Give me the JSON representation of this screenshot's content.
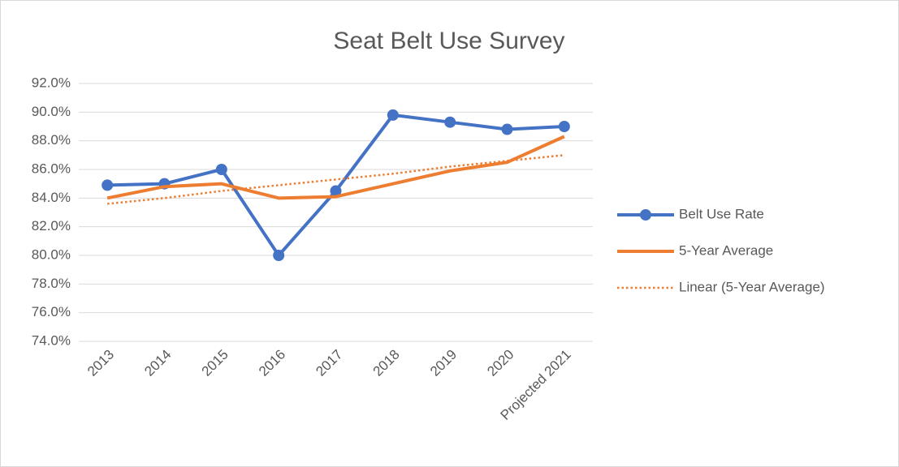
{
  "chart_data": {
    "type": "line",
    "title": "Seat Belt Use Survey",
    "categories": [
      "2013",
      "2014",
      "2015",
      "2016",
      "2017",
      "2018",
      "2019",
      "2020",
      "Projected 2021"
    ],
    "series": [
      {
        "name": "Belt Use Rate",
        "color": "#4472c4",
        "line_style": "solid",
        "marker": "circle",
        "values": [
          84.9,
          85.0,
          86.0,
          80.0,
          84.5,
          89.8,
          89.3,
          88.8,
          89.0
        ]
      },
      {
        "name": "5-Year Average",
        "color": "#ed7d31",
        "line_style": "solid",
        "marker": "none",
        "values": [
          84.0,
          84.8,
          85.0,
          84.0,
          84.1,
          85.0,
          85.9,
          86.5,
          88.3
        ]
      },
      {
        "name": "Linear (5-Year Average)",
        "color": "#ed7d31",
        "line_style": "dotted",
        "marker": "none",
        "values": [
          83.6,
          84.0,
          84.5,
          84.9,
          85.3,
          85.7,
          86.2,
          86.6,
          87.0
        ]
      }
    ],
    "ylim": [
      74,
      92
    ],
    "yticks": [
      {
        "value": 74,
        "label": "74.0%"
      },
      {
        "value": 76,
        "label": "76.0%"
      },
      {
        "value": 78,
        "label": "78.0%"
      },
      {
        "value": 80,
        "label": "80.0%"
      },
      {
        "value": 82,
        "label": "82.0%"
      },
      {
        "value": 84,
        "label": "84.0%"
      },
      {
        "value": 86,
        "label": "86.0%"
      },
      {
        "value": 88,
        "label": "88.0%"
      },
      {
        "value": 90,
        "label": "90.0%"
      },
      {
        "value": 92,
        "label": "92.0%"
      }
    ],
    "grid": true,
    "legend": "right"
  }
}
